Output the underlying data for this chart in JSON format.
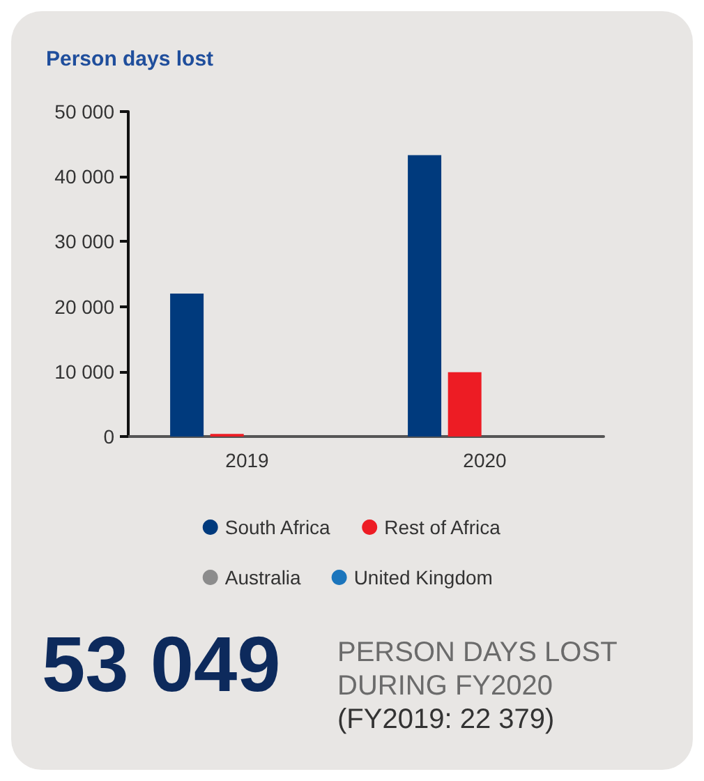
{
  "chart_data": {
    "type": "bar",
    "title": "Person days lost",
    "categories": [
      "2019",
      "2020"
    ],
    "series": [
      {
        "name": "South Africa",
        "color": "#003a7d",
        "values": [
          22000,
          43300
        ]
      },
      {
        "name": "Rest of Africa",
        "color": "#ed1c24",
        "values": [
          400,
          9900
        ]
      },
      {
        "name": "Australia",
        "color": "#8c8c8c",
        "values": [
          null,
          null
        ]
      },
      {
        "name": "United Kingdom",
        "color": "#1b75bc",
        "values": [
          null,
          null
        ]
      }
    ],
    "ylim": [
      0,
      50000
    ],
    "yticks": [
      0,
      {
        "value": 10000,
        "label": "10 000"
      },
      {
        "value": 20000,
        "label": "20 000"
      },
      {
        "value": 30000,
        "label": "30 000"
      },
      {
        "value": 40000,
        "label": "40 000"
      },
      {
        "value": 50000,
        "label": "50 000"
      }
    ],
    "grid": false,
    "legend": "bottom",
    "annotations": [
      "53 049",
      "PERSON DAYS LOST",
      "DURING FY2020",
      "(FY2019: 22 379)"
    ]
  }
}
